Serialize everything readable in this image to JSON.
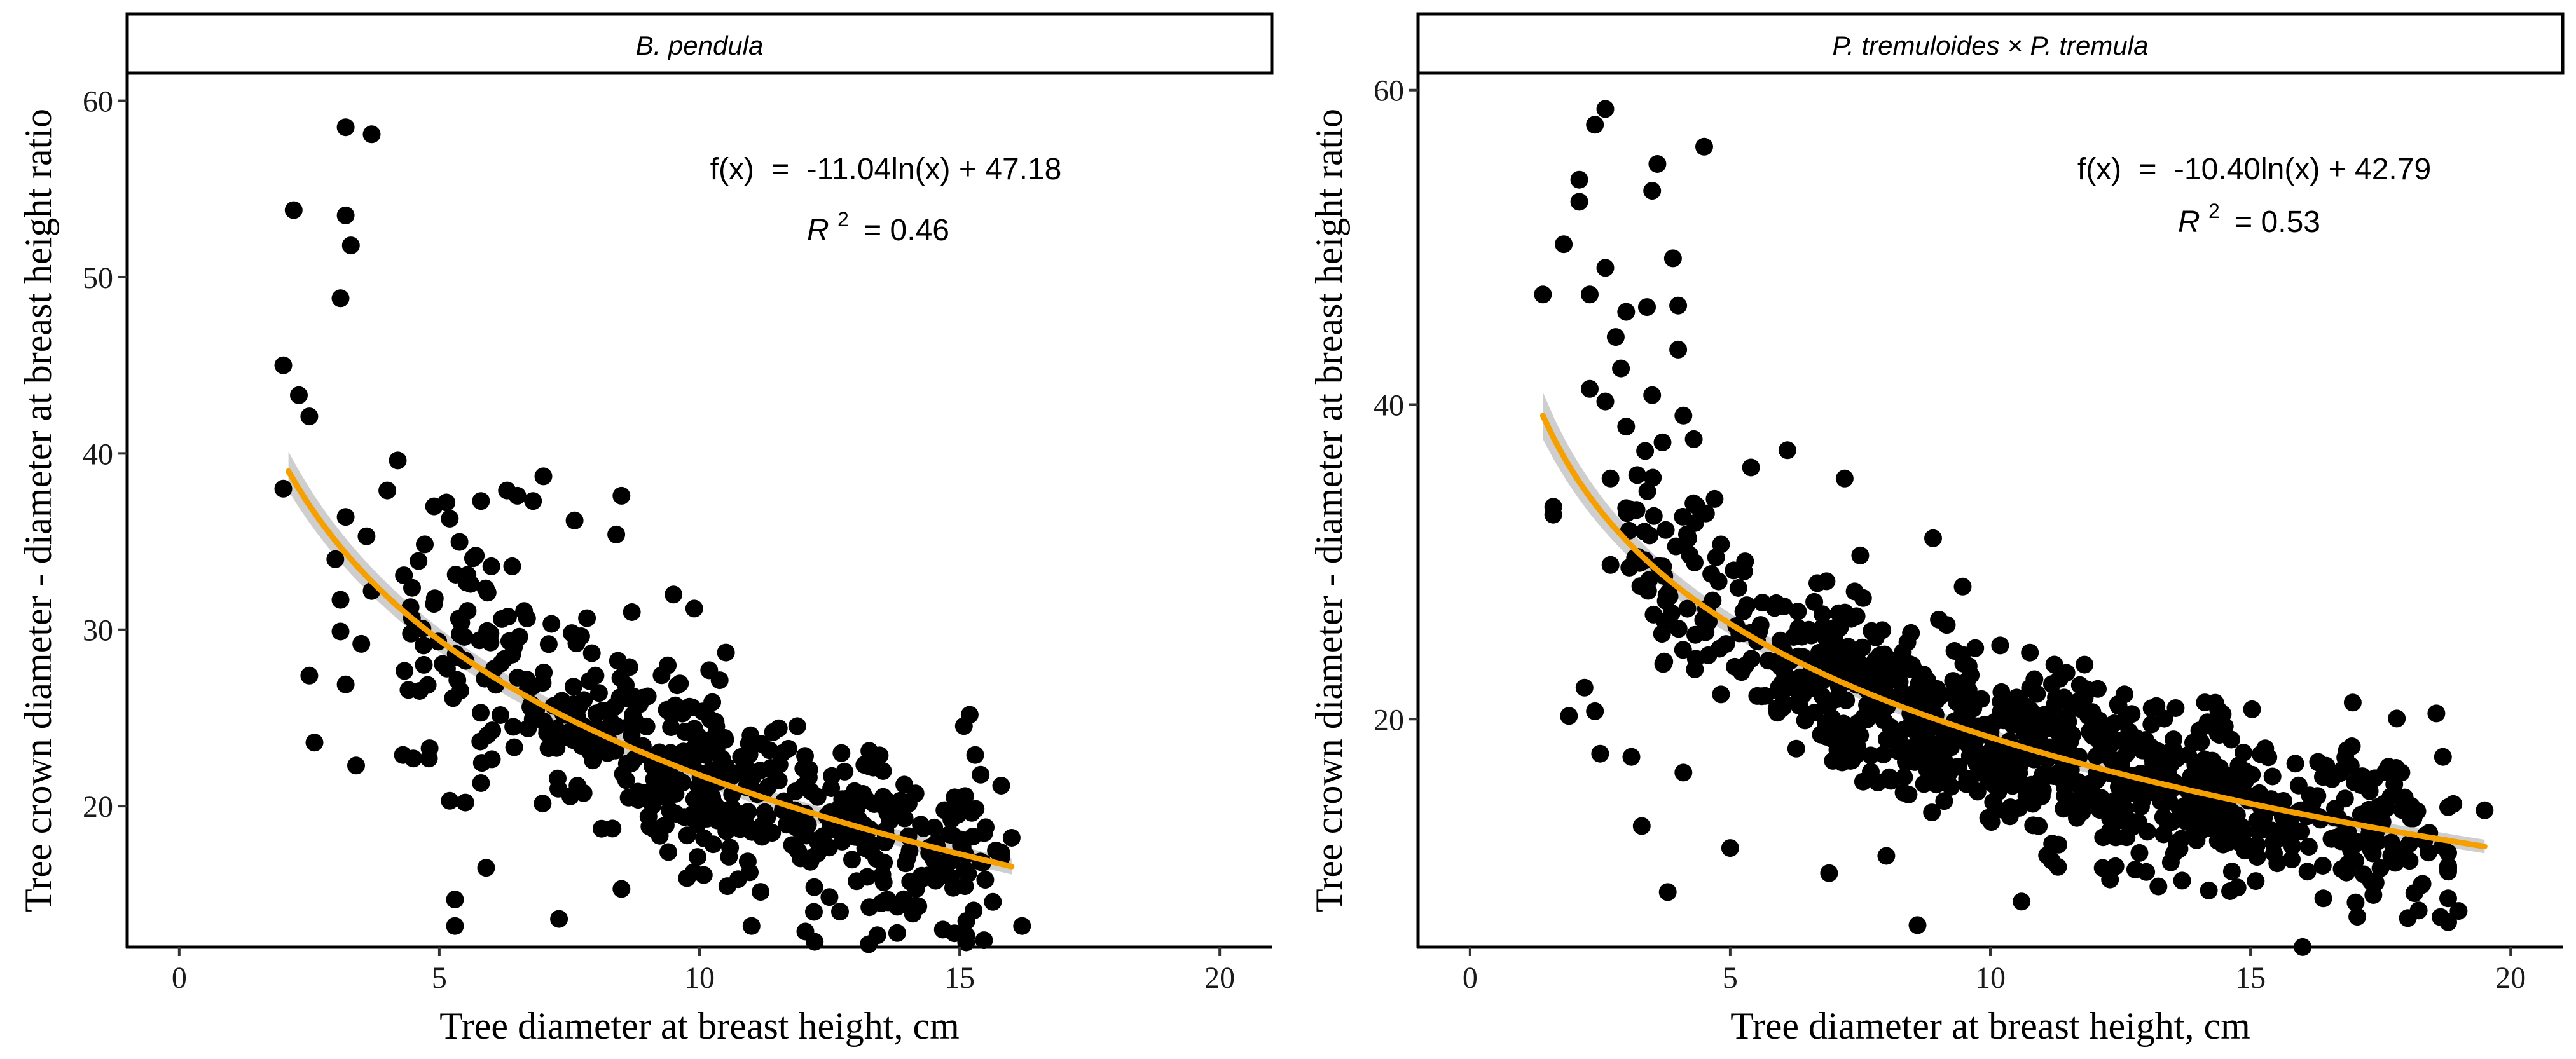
{
  "colors": {
    "point": "#000000",
    "fit_line": "#f5a000",
    "confidence_band": "#bebebe",
    "strip_border": "#000000",
    "background": "#ffffff"
  },
  "chart_data": [
    {
      "type": "scatter",
      "panel": "B. pendula",
      "xlabel": "Tree diameter at breast height, cm",
      "ylabel": "Tree crown diameter - diameter at breast height ratio",
      "x_ticks": [
        0,
        5,
        10,
        15,
        20
      ],
      "y_ticks": [
        20,
        30,
        40,
        50,
        60
      ],
      "xlim": [
        -1,
        21
      ],
      "ylim": [
        12,
        61.5
      ],
      "equation_lhs": "f(x)",
      "equation_rhs": "-11.04ln(x) + 47.18",
      "r2_label": "R",
      "r2_sup": "2",
      "r2_value": "= 0.46",
      "fit": {
        "a": -11.04,
        "b": 47.18,
        "x_from": 2.1,
        "x_to": 16.0
      },
      "outliers": [
        [
          2.0,
          45.0
        ],
        [
          2.0,
          38.0
        ],
        [
          2.2,
          53.8
        ],
        [
          2.3,
          43.3
        ],
        [
          2.5,
          42.1
        ],
        [
          2.5,
          27.4
        ],
        [
          2.6,
          23.6
        ],
        [
          3.1,
          48.8
        ],
        [
          3.2,
          58.5
        ],
        [
          3.2,
          53.5
        ],
        [
          3.3,
          51.8
        ],
        [
          3.7,
          58.1
        ],
        [
          3.0,
          34.0
        ],
        [
          3.1,
          31.7
        ],
        [
          3.2,
          36.4
        ],
        [
          3.4,
          22.3
        ],
        [
          3.5,
          29.2
        ],
        [
          3.6,
          35.3
        ],
        [
          3.7,
          32.2
        ],
        [
          3.1,
          29.9
        ],
        [
          3.2,
          26.9
        ],
        [
          4.0,
          37.9
        ],
        [
          4.2,
          39.6
        ],
        [
          4.3,
          22.9
        ],
        [
          4.5,
          22.7
        ],
        [
          4.6,
          33.9
        ],
        [
          4.8,
          22.7
        ],
        [
          4.9,
          37.0
        ],
        [
          5.2,
          36.3
        ],
        [
          5.2,
          20.3
        ],
        [
          5.3,
          14.7
        ],
        [
          5.3,
          13.2
        ],
        [
          5.5,
          20.2
        ],
        [
          5.6,
          32.6
        ],
        [
          5.7,
          34.2
        ],
        [
          5.8,
          37.3
        ],
        [
          5.8,
          21.3
        ],
        [
          5.9,
          16.5
        ],
        [
          6.0,
          33.6
        ],
        [
          6.3,
          37.9
        ],
        [
          6.4,
          33.6
        ],
        [
          6.5,
          37.6
        ],
        [
          6.8,
          37.3
        ],
        [
          7.0,
          38.7
        ],
        [
          7.3,
          13.6
        ],
        [
          7.6,
          36.2
        ],
        [
          8.0,
          27.4
        ],
        [
          8.4,
          35.4
        ],
        [
          8.5,
          37.6
        ],
        [
          8.7,
          31.0
        ],
        [
          9.5,
          32.0
        ],
        [
          9.9,
          31.2
        ],
        [
          8.5,
          15.3
        ],
        [
          11.0,
          13.2
        ],
        [
          12.2,
          14.0
        ],
        [
          13.8,
          12.8
        ],
        [
          14.1,
          13.9
        ],
        [
          15.3,
          22.9
        ],
        [
          16.0,
          18.2
        ],
        [
          16.2,
          13.2
        ],
        [
          15.5,
          18.8
        ],
        [
          14.7,
          16.5
        ]
      ],
      "cloud": {
        "n": 520,
        "x_min": 4.3,
        "x_max": 15.8,
        "noise": 2.6,
        "seed": 7
      }
    },
    {
      "type": "scatter",
      "panel": "P. tremuloides × P. tremula",
      "xlabel": "Tree diameter at breast height, cm",
      "ylabel": "Tree crown diameter - diameter at breast height ratio",
      "x_ticks": [
        0,
        5,
        10,
        15,
        20
      ],
      "y_ticks": [
        20,
        40,
        60
      ],
      "xlim": [
        -1,
        21
      ],
      "ylim": [
        5.5,
        61
      ],
      "equation_lhs": "f(x)",
      "equation_rhs": "-10.40ln(x) + 42.79",
      "r2_label": "R",
      "r2_sup": "2",
      "r2_value": "= 0.53",
      "fit": {
        "a": -10.4,
        "b": 42.79,
        "x_from": 1.4,
        "x_to": 19.5
      },
      "outliers": [
        [
          1.4,
          47.0
        ],
        [
          1.6,
          33.5
        ],
        [
          1.6,
          33.0
        ],
        [
          1.8,
          50.2
        ],
        [
          1.9,
          20.2
        ],
        [
          2.1,
          52.9
        ],
        [
          2.1,
          54.3
        ],
        [
          2.2,
          22.0
        ],
        [
          2.3,
          41.0
        ],
        [
          2.3,
          47.0
        ],
        [
          2.4,
          57.8
        ],
        [
          2.4,
          20.5
        ],
        [
          2.5,
          17.8
        ],
        [
          2.6,
          58.8
        ],
        [
          2.6,
          48.7
        ],
        [
          2.6,
          40.2
        ],
        [
          2.7,
          35.3
        ],
        [
          2.7,
          29.8
        ],
        [
          2.8,
          44.3
        ],
        [
          2.9,
          42.3
        ],
        [
          3.0,
          38.6
        ],
        [
          3.0,
          45.9
        ],
        [
          3.1,
          17.6
        ],
        [
          3.2,
          33.3
        ],
        [
          3.3,
          13.2
        ],
        [
          3.4,
          46.2
        ],
        [
          3.5,
          53.6
        ],
        [
          3.5,
          40.6
        ],
        [
          3.6,
          55.3
        ],
        [
          3.7,
          37.6
        ],
        [
          3.8,
          9.0
        ],
        [
          3.9,
          49.3
        ],
        [
          4.0,
          46.3
        ],
        [
          4.0,
          43.5
        ],
        [
          4.1,
          39.3
        ],
        [
          4.1,
          16.6
        ],
        [
          4.5,
          56.4
        ],
        [
          4.3,
          37.8
        ],
        [
          4.7,
          34.0
        ],
        [
          5.0,
          11.8
        ],
        [
          5.4,
          36.0
        ],
        [
          6.1,
          37.1
        ],
        [
          6.9,
          10.2
        ],
        [
          7.2,
          35.3
        ],
        [
          8.0,
          11.3
        ],
        [
          8.6,
          6.9
        ],
        [
          8.9,
          31.5
        ],
        [
          10.6,
          8.4
        ],
        [
          11.3,
          10.6
        ],
        [
          12.3,
          9.8
        ],
        [
          14.2,
          9.1
        ],
        [
          15.1,
          9.7
        ],
        [
          16.4,
          8.6
        ],
        [
          18.8,
          8.6
        ],
        [
          19.0,
          7.8
        ],
        [
          18.9,
          14.6
        ],
        [
          19.5,
          14.2
        ],
        [
          18.7,
          17.6
        ],
        [
          17.8,
          16.9
        ],
        [
          17.9,
          16.6
        ]
      ],
      "cloud": {
        "n": 900,
        "x_min": 3.0,
        "x_max": 18.8,
        "noise": 2.7,
        "seed": 13
      }
    }
  ]
}
